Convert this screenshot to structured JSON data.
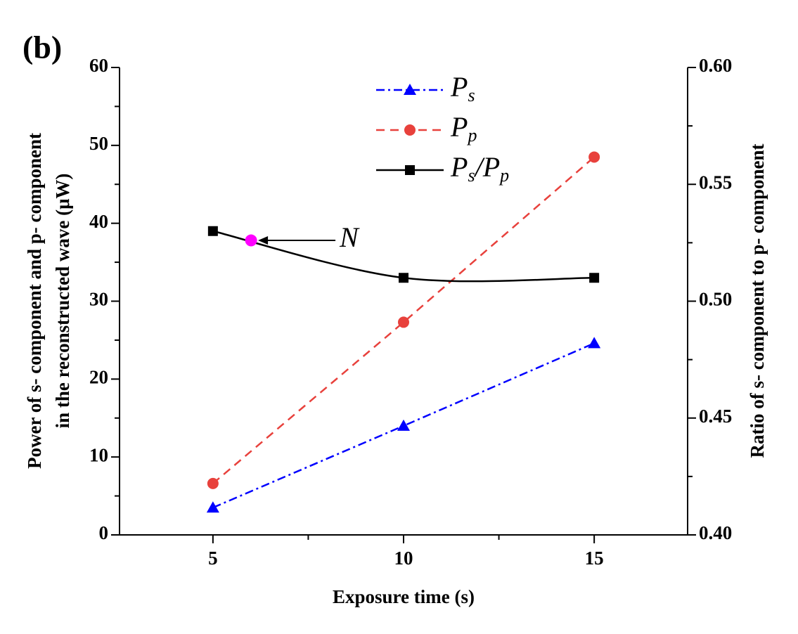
{
  "chart_data": {
    "type": "line",
    "panel_label": "(b)",
    "xlabel": "Exposure time (s)",
    "ylabel": [
      "Power of s- component and p- component",
      "in the reconstructed wave (μW)"
    ],
    "y2label": "Ratio of s- component to p- component",
    "x": [
      5,
      10,
      15
    ],
    "xlim": [
      2.55,
      17.45
    ],
    "xticks": [
      5,
      10,
      15
    ],
    "ylim": [
      0,
      60
    ],
    "yticks": [
      0,
      10,
      20,
      30,
      40,
      50,
      60
    ],
    "y2lim": [
      0.4,
      0.6
    ],
    "y2ticks": [
      {
        "value": 0.4,
        "label": "0.40"
      },
      0.45,
      {
        "value": 0.5,
        "label": "0.50"
      },
      0.55,
      {
        "value": 0.6,
        "label": "0.60"
      }
    ],
    "series": [
      {
        "name": "Ps",
        "color": "#0000ff",
        "marker": "triangle",
        "dash": "dashdot",
        "values": [
          3.5,
          14,
          24.6
        ]
      },
      {
        "name": "Pp",
        "color": "#e8413c",
        "marker": "circle",
        "dash": "dashed",
        "values": [
          6.6,
          27.3,
          48.5
        ]
      },
      {
        "name": "Ps/Pp",
        "color": "#000000",
        "marker": "square",
        "dash": "solid",
        "smooth": true,
        "axis": "y2",
        "values": [
          0.53,
          0.51,
          0.51
        ]
      }
    ],
    "annotations": [
      {
        "text": "N",
        "x": 6,
        "y": 0.526,
        "color": "#ff00ff"
      }
    ]
  }
}
